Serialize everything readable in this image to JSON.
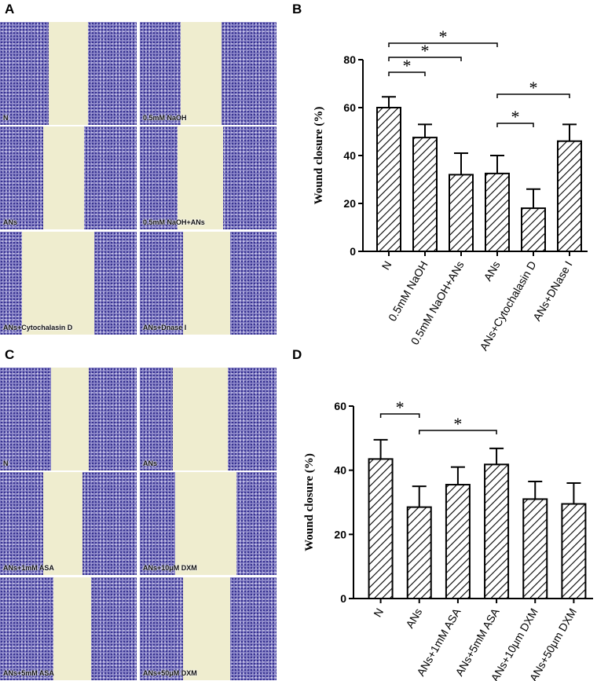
{
  "panel_labels": [
    "A",
    "B",
    "C",
    "D"
  ],
  "image_panels": [
    {
      "labels": [
        "N",
        "0.5mM NaOH",
        "ANs",
        "0.5mM NaOH+ANs",
        "ANs+Cytochalasin D",
        "ANs+Dnase I"
      ]
    },
    {
      "labels": [
        "N",
        "ANs",
        "ANs+1mM ASA",
        "ANs+10μM DXM",
        "ANs+5mM ASA",
        "ANs+50μM DXM"
      ]
    }
  ],
  "chart_data": [
    {
      "type": "bar",
      "y_label": "Wound closure (%)",
      "categories": [
        "N",
        "0.5mM NaOH",
        "0.5mM NaOH+ANs",
        "ANs",
        "ANs+Cytochalasin D",
        "ANs+DNase I"
      ],
      "values": [
        60,
        47.5,
        32,
        32.5,
        18,
        46
      ],
      "errors": [
        4.5,
        5.5,
        9,
        7.5,
        8,
        7
      ],
      "color": "#000000",
      "ylim": [
        0,
        80
      ],
      "yticks": [
        0,
        20,
        40,
        60,
        80
      ],
      "significance": [
        {
          "groups": [
            0,
            1
          ],
          "label": "*"
        },
        {
          "groups": [
            0,
            2
          ],
          "label": "*"
        },
        {
          "groups": [
            0,
            3
          ],
          "label": "*"
        },
        {
          "groups": [
            3,
            4
          ],
          "label": "*"
        },
        {
          "groups": [
            3,
            5
          ],
          "label": "*"
        }
      ]
    },
    {
      "type": "bar",
      "y_label": "Wound closure (%)",
      "categories": [
        "N",
        "ANs",
        "ANs+1mM ASA",
        "ANs+5mM ASA",
        "ANs+10μm DXM",
        "ANs+50μm DXM"
      ],
      "values": [
        43.5,
        28.5,
        35.5,
        41.8,
        31,
        29.5
      ],
      "errors": [
        6,
        6.5,
        5.5,
        5,
        5.5,
        6.5
      ],
      "color": "#000000",
      "ylim": [
        0,
        60
      ],
      "yticks": [
        0,
        20,
        40,
        60
      ],
      "significance": [
        {
          "groups": [
            0,
            1
          ],
          "label": "*"
        },
        {
          "groups": [
            1,
            3
          ],
          "label": "*"
        }
      ]
    }
  ]
}
